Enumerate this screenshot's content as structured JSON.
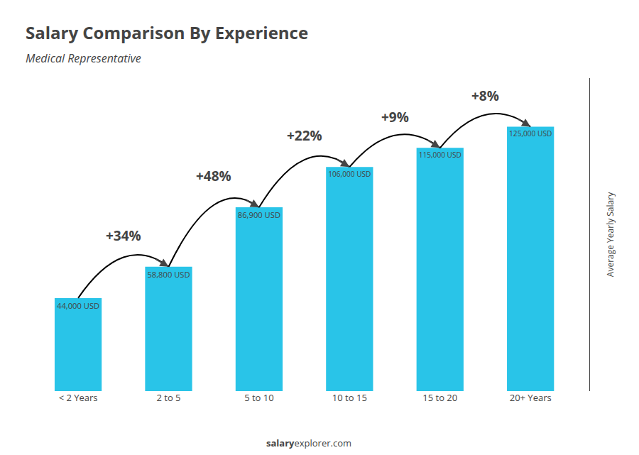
{
  "chart_data": {
    "type": "bar",
    "title": "Salary Comparison By Experience",
    "subtitle": "Medical Representative",
    "ylabel": "Average Yearly Salary",
    "footer": [
      "salary",
      "explorer.com"
    ],
    "categories": [
      "< 2 Years",
      "2 to 5",
      "5 to 10",
      "10 to 15",
      "15 to 20",
      "20+ Years"
    ],
    "values": [
      44000,
      58800,
      86900,
      106000,
      115000,
      125000
    ],
    "value_labels": [
      "44,000 USD",
      "58,800 USD",
      "86,900 USD",
      "106,000 USD",
      "115,000 USD",
      "125,000 USD"
    ],
    "data_labels": true,
    "annotations": [
      "+34%",
      "+48%",
      "+22%",
      "+9%",
      "+8%"
    ],
    "color": "#29c4e8",
    "ylim": [
      0,
      148000
    ],
    "grid": false,
    "tick_labels": "x"
  }
}
